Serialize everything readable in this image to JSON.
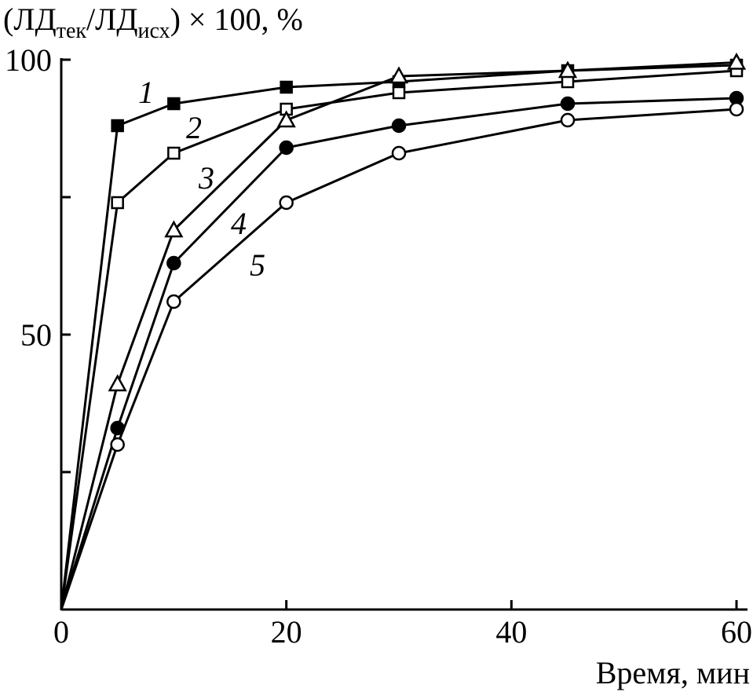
{
  "chart_data": {
    "type": "line",
    "title": "",
    "ylabel": {
      "main": "(ЛД",
      "sub1": "тек",
      "mid": "/ЛД",
      "sub2": "исх",
      "tail": ") × 100, %"
    },
    "xlabel": "Время, мин",
    "xlim": [
      0,
      60
    ],
    "ylim": [
      0,
      100
    ],
    "x_ticks": [
      0,
      20,
      40,
      60
    ],
    "y_ticks": [
      0,
      25,
      50,
      75,
      100
    ],
    "x_tick_labels": [
      "0",
      "20",
      "40",
      "60"
    ],
    "y_tick_labels": [
      "50",
      "100"
    ],
    "grid": false,
    "series": [
      {
        "label": "1",
        "marker": "square-filled",
        "x": [
          0,
          5,
          10,
          20,
          30,
          45,
          60
        ],
        "y": [
          0,
          88,
          92,
          95,
          96,
          98,
          99
        ]
      },
      {
        "label": "2",
        "marker": "square-open",
        "x": [
          0,
          5,
          10,
          20,
          30,
          45,
          60
        ],
        "y": [
          0,
          74,
          83,
          91,
          94,
          96,
          98
        ]
      },
      {
        "label": "3",
        "marker": "triangle-open",
        "x": [
          0,
          5,
          10,
          20,
          30,
          45,
          60
        ],
        "y": [
          0,
          41,
          69,
          89,
          97,
          98,
          99.5
        ]
      },
      {
        "label": "4",
        "marker": "circle-filled",
        "x": [
          0,
          5,
          10,
          20,
          30,
          45,
          60
        ],
        "y": [
          0,
          33,
          63,
          84,
          88,
          92,
          93
        ]
      },
      {
        "label": "5",
        "marker": "circle-open",
        "x": [
          0,
          5,
          10,
          20,
          30,
          45,
          60
        ],
        "y": [
          0,
          30,
          56,
          74,
          83,
          89,
          91
        ]
      }
    ]
  }
}
